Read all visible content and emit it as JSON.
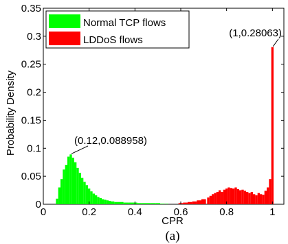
{
  "chart_data": {
    "type": "bar",
    "xlabel": "CPR",
    "ylabel": "Probability Density",
    "caption": "(a)",
    "xlim": [
      0,
      1.05
    ],
    "ylim": [
      0,
      0.35
    ],
    "xticks": [
      "0",
      "0.2",
      "0.4",
      "0.6",
      "0.8",
      "1"
    ],
    "xtick_values": [
      0,
      0.2,
      0.4,
      0.6,
      0.8,
      1.0
    ],
    "yticks": [
      "0",
      "0.05",
      "0.1",
      "0.15",
      "0.2",
      "0.25",
      "0.3",
      "0.35"
    ],
    "ytick_values": [
      0,
      0.05,
      0.1,
      0.15,
      0.2,
      0.25,
      0.3,
      0.35
    ],
    "legend": {
      "position": "top-left",
      "entries": [
        {
          "name": "Normal TCP flows",
          "color": "#00ff00"
        },
        {
          "name": "LDDoS flows",
          "color": "#ff0000"
        }
      ]
    },
    "series": [
      {
        "name": "Normal TCP flows",
        "color": "#00ff00",
        "x": [
          0.06,
          0.07,
          0.08,
          0.09,
          0.1,
          0.11,
          0.12,
          0.13,
          0.14,
          0.15,
          0.16,
          0.17,
          0.18,
          0.19,
          0.2,
          0.21,
          0.22,
          0.23,
          0.24,
          0.25,
          0.26,
          0.27,
          0.28,
          0.29,
          0.3,
          0.32,
          0.34,
          0.36,
          0.38,
          0.4,
          0.42,
          0.44,
          0.46,
          0.48,
          0.5,
          0.52,
          0.54
        ],
        "values": [
          0.01,
          0.03,
          0.045,
          0.062,
          0.07,
          0.085,
          0.089,
          0.083,
          0.075,
          0.065,
          0.056,
          0.047,
          0.04,
          0.034,
          0.028,
          0.023,
          0.019,
          0.016,
          0.013,
          0.011,
          0.009,
          0.008,
          0.007,
          0.006,
          0.005,
          0.004,
          0.004,
          0.003,
          0.003,
          0.003,
          0.002,
          0.002,
          0.002,
          0.002,
          0.002,
          0.001,
          0.001
        ]
      },
      {
        "name": "LDDoS flows",
        "color": "#ff0000",
        "x": [
          0.6,
          0.62,
          0.64,
          0.66,
          0.68,
          0.7,
          0.72,
          0.73,
          0.74,
          0.75,
          0.76,
          0.77,
          0.78,
          0.79,
          0.8,
          0.81,
          0.82,
          0.83,
          0.84,
          0.85,
          0.86,
          0.87,
          0.88,
          0.89,
          0.9,
          0.91,
          0.92,
          0.93,
          0.94,
          0.95,
          0.96,
          0.97,
          0.98,
          0.99,
          1.0
        ],
        "values": [
          0.002,
          0.003,
          0.004,
          0.005,
          0.007,
          0.009,
          0.012,
          0.015,
          0.018,
          0.02,
          0.022,
          0.025,
          0.022,
          0.026,
          0.028,
          0.03,
          0.029,
          0.028,
          0.03,
          0.027,
          0.025,
          0.026,
          0.024,
          0.022,
          0.02,
          0.022,
          0.018,
          0.016,
          0.02,
          0.018,
          0.017,
          0.024,
          0.03,
          0.045,
          0.28063
        ]
      }
    ],
    "annotations": [
      {
        "text": "(0.12,0.088958)",
        "x": 0.12,
        "y": 0.088958
      },
      {
        "text": "(1,0.28063)",
        "x": 1.0,
        "y": 0.28063
      }
    ]
  }
}
